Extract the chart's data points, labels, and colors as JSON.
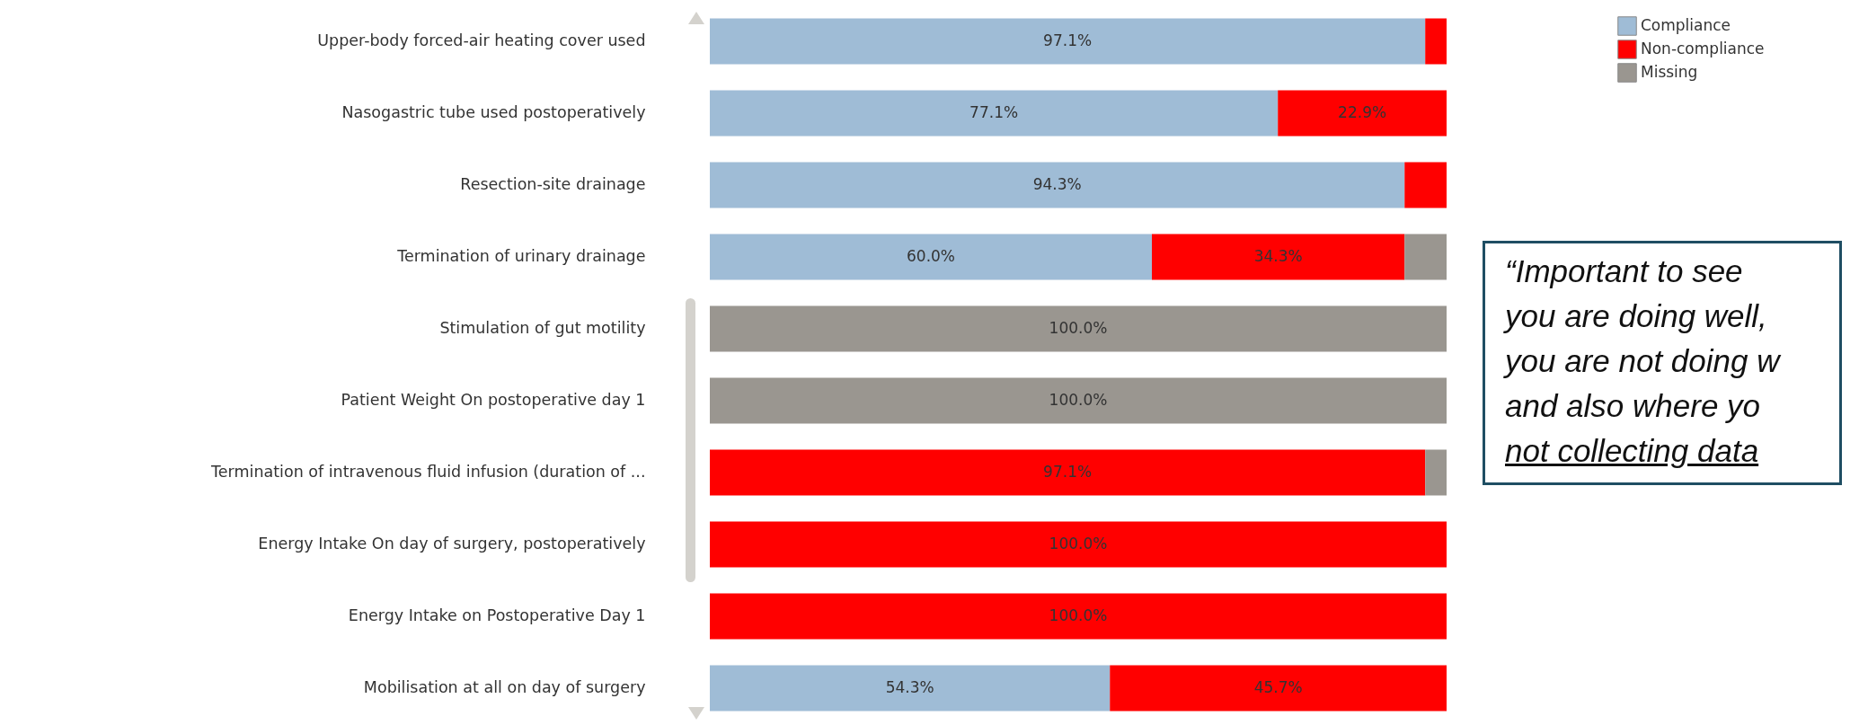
{
  "chart_data": {
    "type": "bar",
    "orientation": "horizontal",
    "stacked": true,
    "categories": [
      "Upper-body  forced-air heating cover used",
      "Nasogastric tube used postoperatively",
      "Resection-site drainage",
      "Termination of urinary drainage",
      "Stimulation of gut motility",
      "Patient Weight On postoperative day 1",
      "Termination of intravenous fluid infusion (duration of ...",
      "Energy Intake On day of surgery, postoperatively",
      "Energy Intake on Postoperative Day 1",
      "Mobilisation at all on day of surgery"
    ],
    "series": [
      {
        "name": "Compliance",
        "color": "#9fbcd6",
        "values": [
          97.1,
          77.1,
          94.3,
          60.0,
          0,
          0,
          0,
          0,
          0,
          54.3
        ],
        "value_labels": [
          "97.1%",
          "77.1%",
          "94.3%",
          "60.0%",
          null,
          null,
          null,
          null,
          null,
          "54.3%"
        ]
      },
      {
        "name": "Non-compliance",
        "color": "#ff0000",
        "values": [
          2.9,
          22.9,
          5.7,
          34.3,
          0,
          0,
          97.1,
          100,
          100,
          45.7
        ],
        "value_labels": [
          null,
          "22.9%",
          null,
          "34.3%",
          null,
          null,
          "97.1%",
          "100.0%",
          "100.0%",
          "45.7%"
        ]
      },
      {
        "name": "Missing",
        "color": "#9a9690",
        "values": [
          0,
          0,
          0,
          5.7,
          100,
          100,
          2.9,
          0,
          0,
          0
        ],
        "value_labels": [
          null,
          null,
          null,
          null,
          "100.0%",
          "100.0%",
          null,
          null,
          null,
          null
        ]
      }
    ],
    "legend": "top right",
    "annotations": [
      "“Important to see\nyou are doing well,\nyou are not doing w\nand also where yo\nnot collecting data"
    ]
  }
}
